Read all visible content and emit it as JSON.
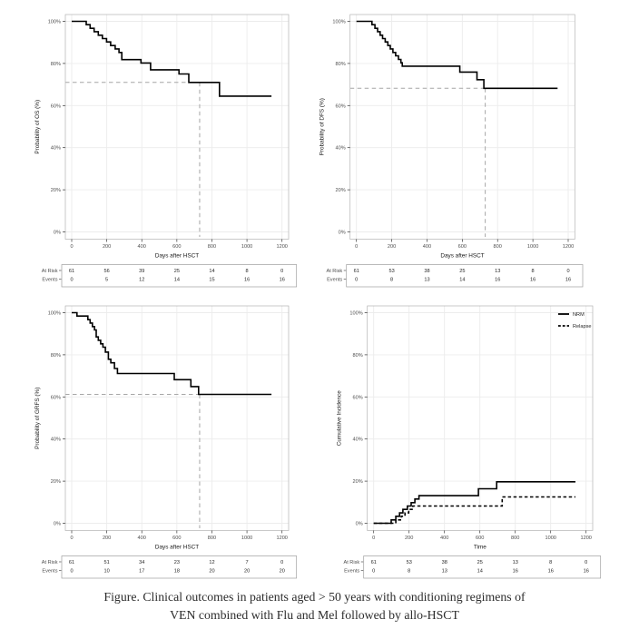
{
  "caption": {
    "line1": "Figure. Clinical outcomes in patients aged > 50 years with conditioning regimens of",
    "line2": "VEN combined with Flu and Mel followed by allo-HSCT"
  },
  "colors": {
    "background": "#ffffff",
    "curve": "#000000",
    "grid_line": "#ececec",
    "panel_border": "#b3b3b3",
    "reference_dash": "#a6a6a6",
    "tick_mark": "#333333",
    "tick_text": "#4d4d4d",
    "axis_title_text": "#1a1a1a",
    "risk_box_border": "#9e9e9e",
    "risk_value_text": "#262626"
  },
  "chart_data": [
    {
      "id": "os",
      "type": "line",
      "title": "",
      "ylabel": "Probability of OS (%)",
      "xlabel": "Days after HSCT",
      "xlim": [
        0,
        1260
      ],
      "ylim": [
        0,
        100
      ],
      "grid": true,
      "xticks": [
        0,
        200,
        400,
        600,
        800,
        1000,
        1200
      ],
      "yticks": {
        "values": [
          0,
          20,
          40,
          60,
          80,
          100
        ],
        "labels": [
          "0%",
          "20%",
          "40%",
          "60%",
          "80%",
          "100%"
        ]
      },
      "series": [
        {
          "name": "OS",
          "style": "solid",
          "step_points": [
            [
              0,
              100
            ],
            [
              83,
              100
            ],
            [
              83,
              98.4
            ],
            [
              105,
              98.4
            ],
            [
              105,
              96.7
            ],
            [
              128,
              96.7
            ],
            [
              128,
              95.1
            ],
            [
              152,
              95.1
            ],
            [
              152,
              93.4
            ],
            [
              175,
              93.4
            ],
            [
              175,
              91.8
            ],
            [
              199,
              91.8
            ],
            [
              199,
              90.2
            ],
            [
              222,
              90.2
            ],
            [
              222,
              88.5
            ],
            [
              248,
              88.5
            ],
            [
              248,
              86.9
            ],
            [
              270,
              86.9
            ],
            [
              270,
              85.2
            ],
            [
              286,
              85.2
            ],
            [
              286,
              81.8
            ],
            [
              395,
              81.8
            ],
            [
              395,
              80.2
            ],
            [
              450,
              80.2
            ],
            [
              450,
              77
            ],
            [
              612,
              77
            ],
            [
              612,
              75
            ],
            [
              668,
              75
            ],
            [
              668,
              71
            ],
            [
              843,
              71
            ],
            [
              843,
              64.5
            ],
            [
              1140,
              64.5
            ]
          ]
        }
      ],
      "reference_lines": {
        "x": 730,
        "y": 71
      },
      "risk_table": {
        "row_labels": [
          "At Risk",
          "Events"
        ],
        "rows": [
          [
            61,
            56,
            39,
            25,
            14,
            8,
            0
          ],
          [
            0,
            5,
            12,
            14,
            15,
            16,
            16
          ]
        ]
      },
      "legend": null
    },
    {
      "id": "dfs",
      "type": "line",
      "title": "",
      "ylabel": "Probability of DFS (%)",
      "xlabel": "Days after HSCT",
      "xlim": [
        0,
        1260
      ],
      "ylim": [
        0,
        100
      ],
      "grid": true,
      "xticks": [
        0,
        200,
        400,
        600,
        800,
        1000,
        1200
      ],
      "yticks": {
        "values": [
          0,
          20,
          40,
          60,
          80,
          100
        ],
        "labels": [
          "0%",
          "20%",
          "40%",
          "60%",
          "80%",
          "100%"
        ]
      },
      "series": [
        {
          "name": "DFS",
          "style": "solid",
          "step_points": [
            [
              0,
              100
            ],
            [
              88,
              100
            ],
            [
              88,
              98.4
            ],
            [
              105,
              98.4
            ],
            [
              105,
              96.7
            ],
            [
              120,
              96.7
            ],
            [
              120,
              95.1
            ],
            [
              134,
              95.1
            ],
            [
              134,
              93.4
            ],
            [
              148,
              93.4
            ],
            [
              148,
              91.8
            ],
            [
              163,
              91.8
            ],
            [
              163,
              90.2
            ],
            [
              178,
              90.2
            ],
            [
              178,
              88.5
            ],
            [
              192,
              88.5
            ],
            [
              192,
              86.9
            ],
            [
              207,
              86.9
            ],
            [
              207,
              85.2
            ],
            [
              222,
              85.2
            ],
            [
              222,
              83.6
            ],
            [
              238,
              83.6
            ],
            [
              238,
              81.9
            ],
            [
              252,
              81.9
            ],
            [
              252,
              80.3
            ],
            [
              260,
              80.3
            ],
            [
              260,
              78.7
            ],
            [
              586,
              78.7
            ],
            [
              586,
              75.9
            ],
            [
              683,
              75.9
            ],
            [
              683,
              72.3
            ],
            [
              722,
              72.3
            ],
            [
              722,
              68.2
            ],
            [
              1140,
              68.2
            ]
          ]
        }
      ],
      "reference_lines": {
        "x": 730,
        "y": 68.2
      },
      "risk_table": {
        "row_labels": [
          "At Risk",
          "Events"
        ],
        "rows": [
          [
            61,
            53,
            38,
            25,
            13,
            8,
            0
          ],
          [
            0,
            8,
            13,
            14,
            16,
            16,
            16
          ]
        ]
      },
      "legend": null
    },
    {
      "id": "grfs",
      "type": "line",
      "title": "",
      "ylabel": "Probability of GRFS (%)",
      "xlabel": "Days after HSCT",
      "xlim": [
        0,
        1260
      ],
      "ylim": [
        0,
        100
      ],
      "grid": true,
      "xticks": [
        0,
        200,
        400,
        600,
        800,
        1000,
        1200
      ],
      "yticks": {
        "values": [
          0,
          20,
          40,
          60,
          80,
          100
        ],
        "labels": [
          "0%",
          "20%",
          "40%",
          "60%",
          "80%",
          "100%"
        ]
      },
      "series": [
        {
          "name": "GRFS",
          "style": "solid",
          "step_points": [
            [
              0,
              100
            ],
            [
              30,
              100
            ],
            [
              30,
              98.4
            ],
            [
              92,
              98.4
            ],
            [
              92,
              96.7
            ],
            [
              105,
              96.7
            ],
            [
              105,
              95.1
            ],
            [
              118,
              95.1
            ],
            [
              118,
              93.4
            ],
            [
              130,
              93.4
            ],
            [
              130,
              91.8
            ],
            [
              140,
              91.8
            ],
            [
              140,
              88.5
            ],
            [
              152,
              88.5
            ],
            [
              152,
              86.9
            ],
            [
              165,
              86.9
            ],
            [
              165,
              85.2
            ],
            [
              178,
              85.2
            ],
            [
              178,
              83.6
            ],
            [
              192,
              83.6
            ],
            [
              192,
              81.3
            ],
            [
              209,
              81.3
            ],
            [
              209,
              77.9
            ],
            [
              223,
              77.9
            ],
            [
              223,
              76.2
            ],
            [
              244,
              76.2
            ],
            [
              244,
              73.5
            ],
            [
              261,
              73.5
            ],
            [
              261,
              71.1
            ],
            [
              585,
              71.1
            ],
            [
              585,
              68.2
            ],
            [
              680,
              68.2
            ],
            [
              680,
              64.9
            ],
            [
              724,
              64.9
            ],
            [
              724,
              61.2
            ],
            [
              1140,
              61.2
            ]
          ]
        }
      ],
      "reference_lines": {
        "x": 730,
        "y": 61.2
      },
      "risk_table": {
        "row_labels": [
          "At Risk",
          "Events"
        ],
        "rows": [
          [
            61,
            51,
            34,
            23,
            12,
            7,
            0
          ],
          [
            0,
            10,
            17,
            18,
            20,
            20,
            20
          ]
        ]
      },
      "legend": null
    },
    {
      "id": "ci",
      "type": "line",
      "title": "",
      "ylabel": "Cumulative Incidence",
      "xlabel": "Time",
      "xlim": [
        0,
        1260
      ],
      "ylim": [
        0,
        100
      ],
      "grid": true,
      "xticks": [
        0,
        200,
        400,
        600,
        800,
        1000,
        1200
      ],
      "yticks": {
        "values": [
          0,
          20,
          40,
          60,
          80,
          100
        ],
        "labels": [
          "0%",
          "20%",
          "40%",
          "60%",
          "80%",
          "100%"
        ]
      },
      "series": [
        {
          "name": "NRM",
          "style": "solid",
          "step_points": [
            [
              0,
              0
            ],
            [
              99,
              0
            ],
            [
              99,
              1.6
            ],
            [
              125,
              1.6
            ],
            [
              125,
              3.3
            ],
            [
              146,
              3.3
            ],
            [
              146,
              4.9
            ],
            [
              165,
              4.9
            ],
            [
              165,
              6.6
            ],
            [
              190,
              6.6
            ],
            [
              190,
              8.2
            ],
            [
              212,
              8.2
            ],
            [
              212,
              9.8
            ],
            [
              233,
              9.8
            ],
            [
              233,
              11.5
            ],
            [
              256,
              11.5
            ],
            [
              256,
              13.1
            ],
            [
              592,
              13.1
            ],
            [
              592,
              16.4
            ],
            [
              695,
              16.4
            ],
            [
              695,
              19.7
            ],
            [
              1140,
              19.7
            ]
          ]
        },
        {
          "name": "Relapse",
          "style": "dashed",
          "step_points": [
            [
              0,
              0
            ],
            [
              125,
              0
            ],
            [
              125,
              1.6
            ],
            [
              156,
              1.6
            ],
            [
              156,
              3.3
            ],
            [
              177,
              3.3
            ],
            [
              177,
              4.9
            ],
            [
              198,
              4.9
            ],
            [
              198,
              6.6
            ],
            [
              221,
              6.6
            ],
            [
              221,
              8.2
            ],
            [
              726,
              8.2
            ],
            [
              726,
              12.5
            ],
            [
              1140,
              12.5
            ]
          ]
        }
      ],
      "reference_lines": null,
      "risk_table": {
        "row_labels": [
          "At Risk",
          "Events"
        ],
        "rows": [
          [
            61,
            53,
            38,
            25,
            13,
            8,
            0
          ],
          [
            0,
            8,
            13,
            14,
            16,
            16,
            16
          ]
        ]
      },
      "legend": {
        "position": "top-right",
        "entries": [
          {
            "label": "NRM",
            "style": "solid"
          },
          {
            "label": "Relapse",
            "style": "dashed"
          }
        ]
      }
    }
  ]
}
